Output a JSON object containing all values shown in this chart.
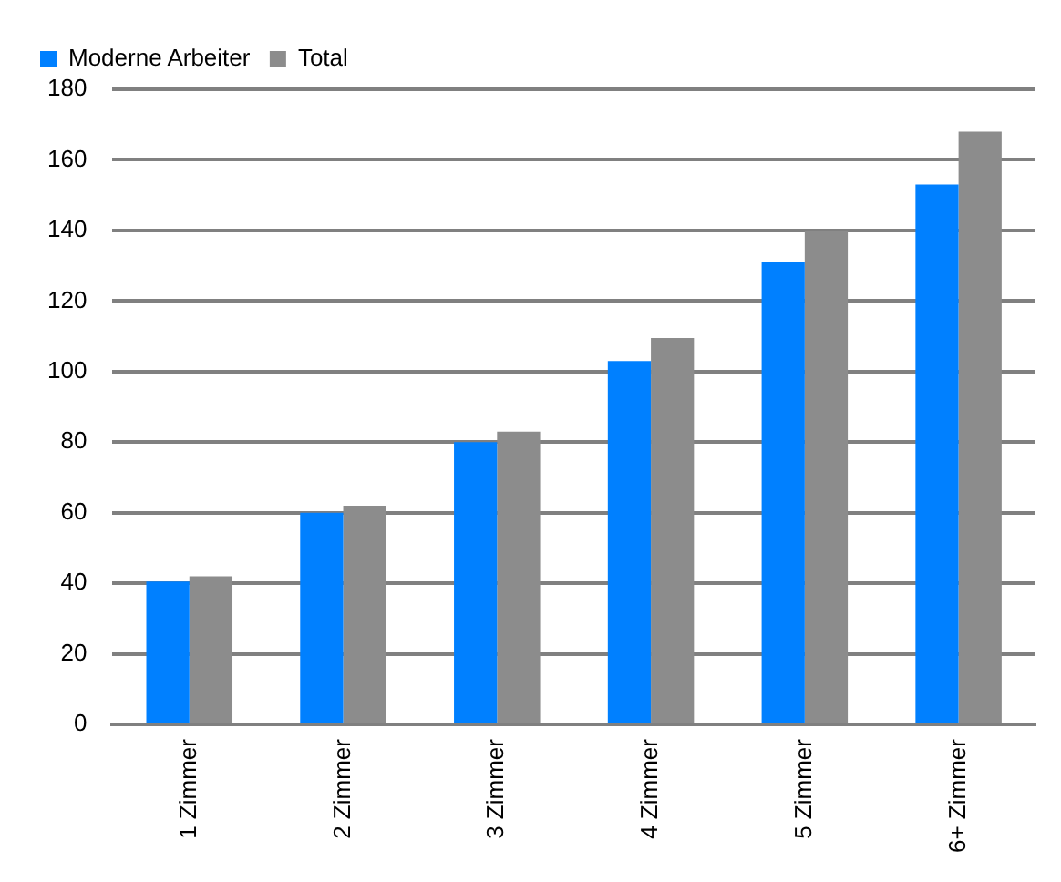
{
  "chart_data": {
    "type": "bar",
    "categories": [
      "1 Zimmer",
      "2 Zimmer",
      "3 Zimmer",
      "4 Zimmer",
      "5 Zimmer",
      "6+ Zimmer"
    ],
    "series": [
      {
        "name": "Moderne Arbeiter",
        "color": "#0080ff",
        "values": [
          40.5,
          60,
          80,
          103,
          131,
          153
        ]
      },
      {
        "name": "Total",
        "color": "#8c8c8c",
        "values": [
          42,
          62,
          83,
          109.5,
          140,
          168
        ]
      }
    ],
    "ylim": [
      0,
      180
    ],
    "yticks": [
      0,
      20,
      40,
      60,
      80,
      100,
      120,
      140,
      160,
      180
    ],
    "grid": "y",
    "legend": "top"
  }
}
